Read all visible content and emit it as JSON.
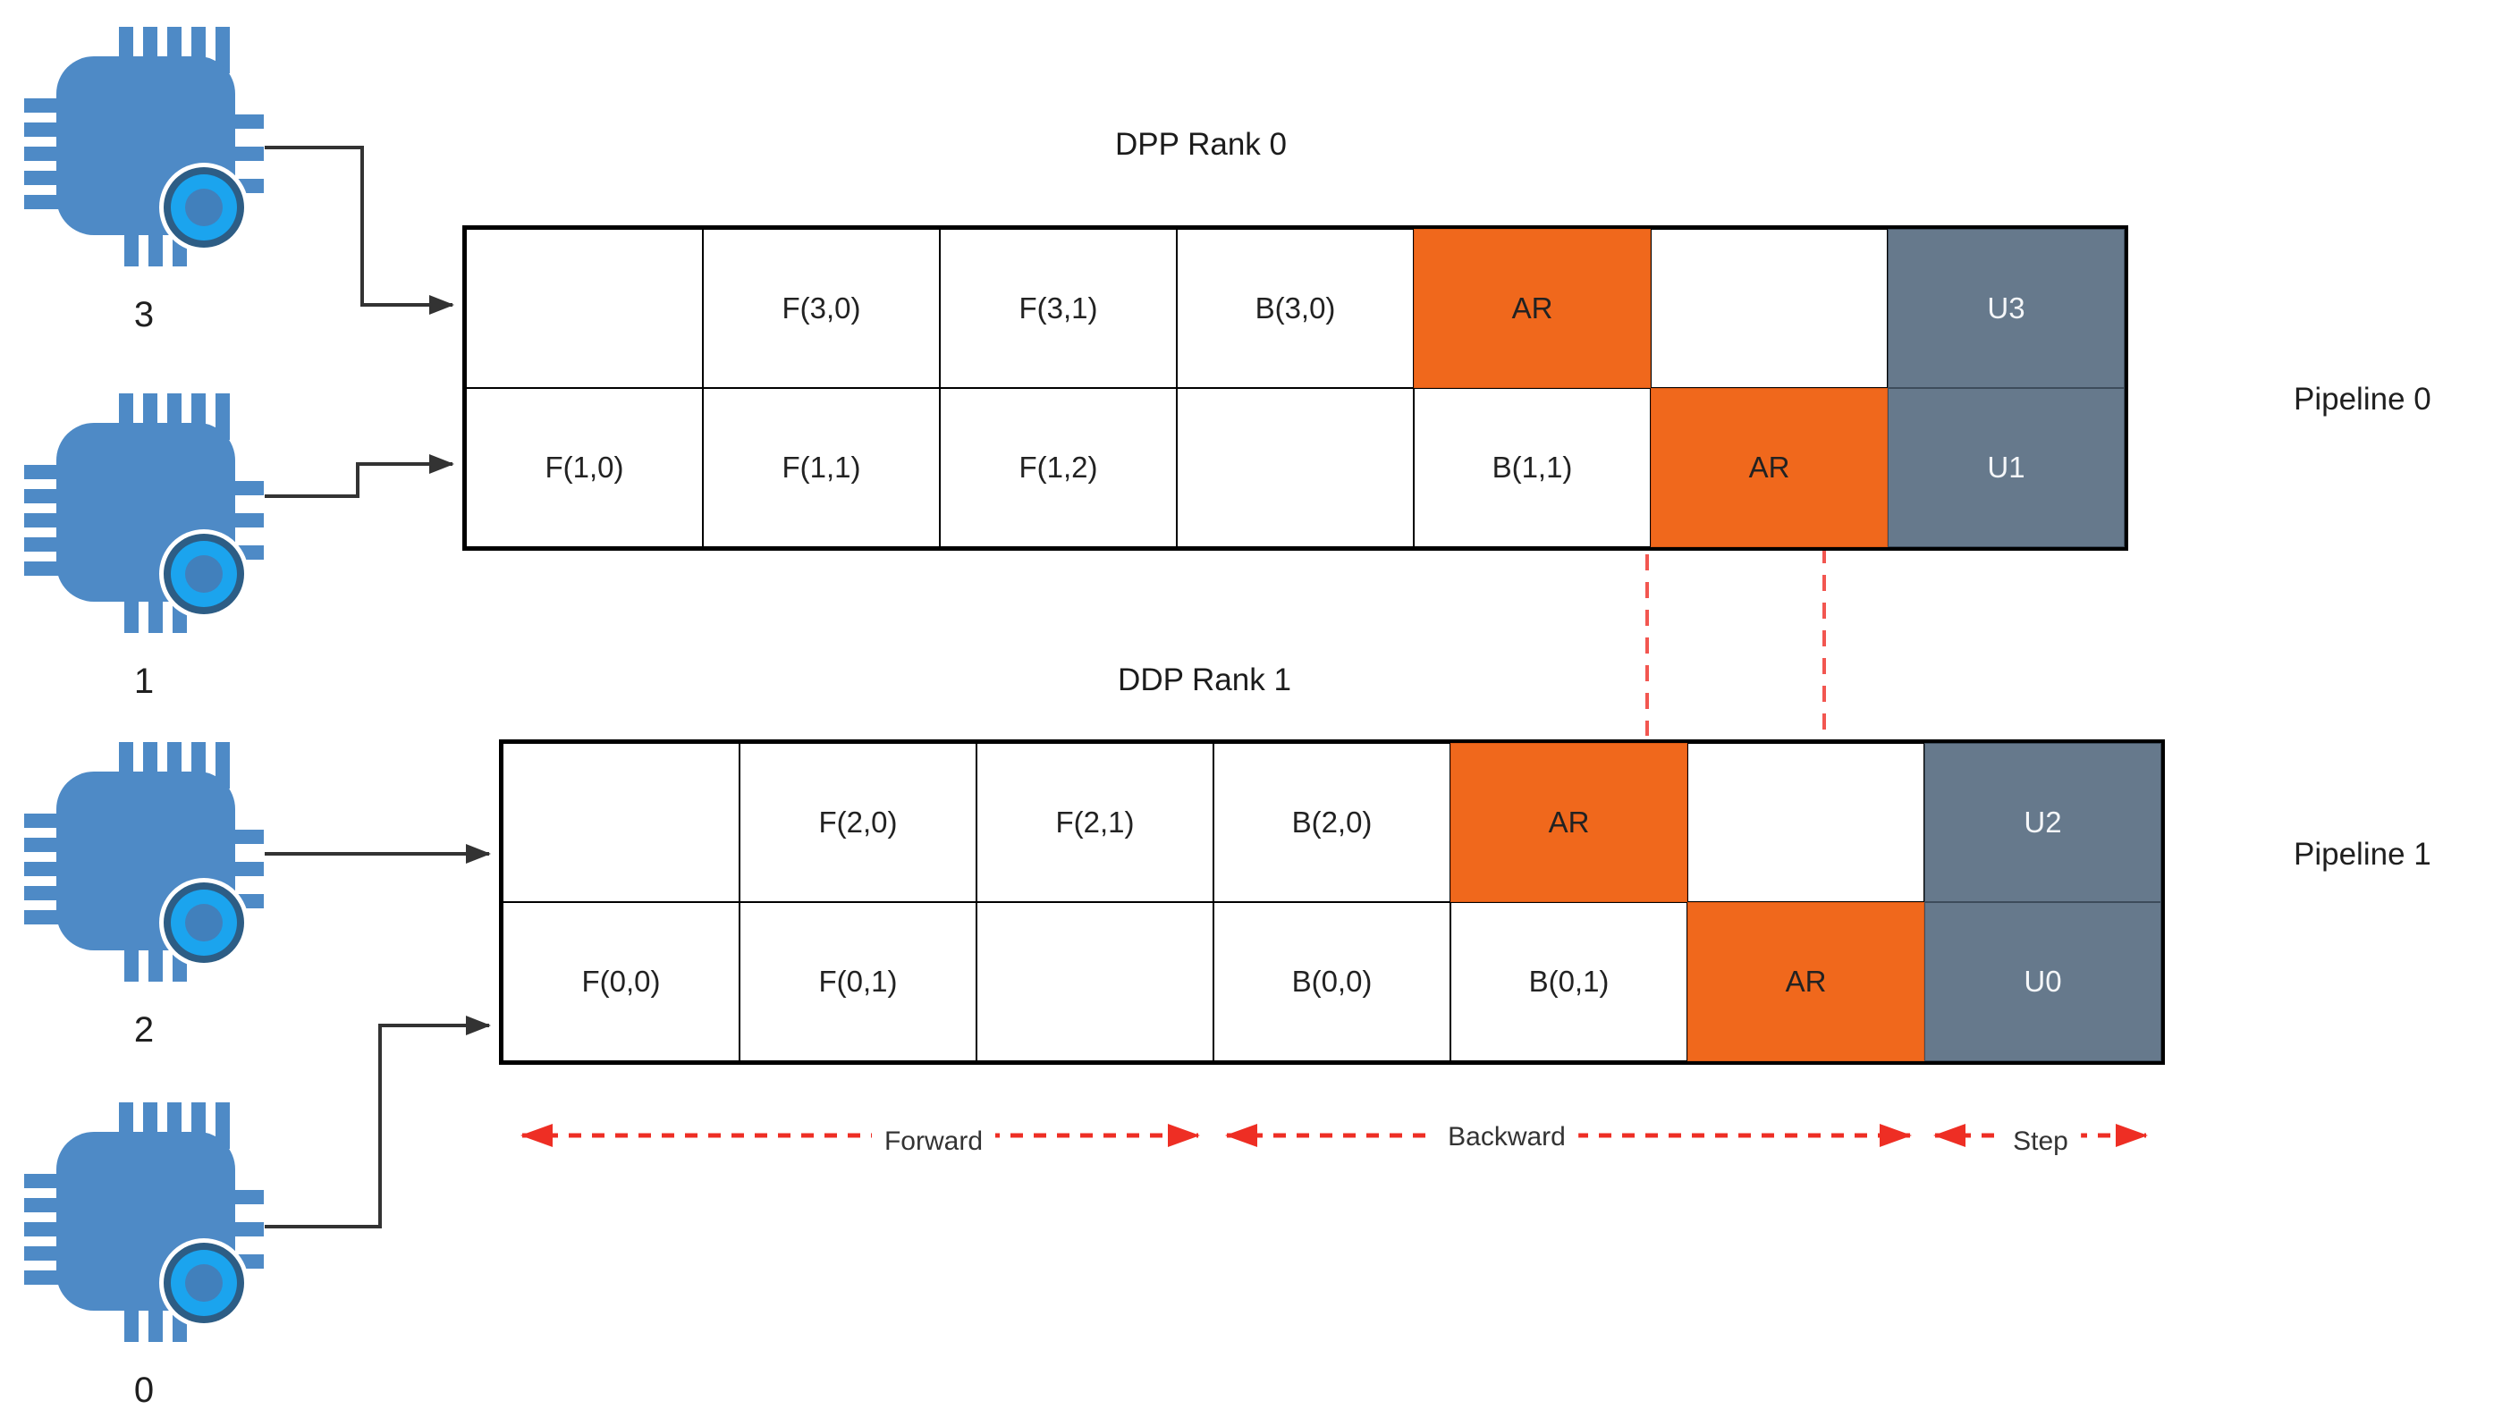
{
  "colors": {
    "orange": "#F0681C",
    "orange-border": "#DB5A13",
    "slate": "#66798C",
    "slate-border": "#3D4C5B",
    "cell-text": "#222222",
    "update-text": "#F4F6F8",
    "red": "#EE2E24",
    "red-soft": "#F25650",
    "arrow-black": "#333333",
    "chip-blue": "#4E8AC6",
    "chip-ring-bright": "#1BA4EE",
    "chip-ring-dark": "#2D5D85",
    "chip-core": "#4180BC"
  },
  "devices": [
    {
      "label": "3"
    },
    {
      "label": "1"
    },
    {
      "label": "2"
    },
    {
      "label": "0"
    }
  ],
  "pipelines": [
    {
      "title": "DPP Rank 0",
      "side_label": "Pipeline 0",
      "rows": [
        [
          {
            "text": "",
            "type": "idle"
          },
          {
            "text": "F(3,0)",
            "type": "forward"
          },
          {
            "text": "F(3,1)",
            "type": "forward"
          },
          {
            "text": "B(3,0)",
            "type": "backward"
          },
          {
            "text": "AR",
            "type": "allreduce"
          },
          {
            "text": "",
            "type": "idle"
          },
          {
            "text": "U3",
            "type": "update"
          }
        ],
        [
          {
            "text": "F(1,0)",
            "type": "forward"
          },
          {
            "text": "F(1,1)",
            "type": "forward"
          },
          {
            "text": "F(1,2)",
            "type": "forward"
          },
          {
            "text": "",
            "type": "idle"
          },
          {
            "text": "B(1,1)",
            "type": "backward"
          },
          {
            "text": "AR",
            "type": "allreduce"
          },
          {
            "text": "U1",
            "type": "update"
          }
        ]
      ]
    },
    {
      "title": "DDP Rank 1",
      "side_label": "Pipeline 1",
      "rows": [
        [
          {
            "text": "",
            "type": "idle"
          },
          {
            "text": "F(2,0)",
            "type": "forward"
          },
          {
            "text": "F(2,1)",
            "type": "forward"
          },
          {
            "text": "B(2,0)",
            "type": "backward"
          },
          {
            "text": "AR",
            "type": "allreduce"
          },
          {
            "text": "",
            "type": "idle"
          },
          {
            "text": "U2",
            "type": "update"
          }
        ],
        [
          {
            "text": "F(0,0)",
            "type": "forward"
          },
          {
            "text": "F(0,1)",
            "type": "forward"
          },
          {
            "text": "",
            "type": "idle"
          },
          {
            "text": "B(0,0)",
            "type": "backward"
          },
          {
            "text": "B(0,1)",
            "type": "backward"
          },
          {
            "text": "AR",
            "type": "allreduce"
          },
          {
            "text": "U0",
            "type": "update"
          }
        ]
      ]
    }
  ],
  "legend": {
    "forward": "Forward",
    "backward": "Backward",
    "step": "Step"
  }
}
